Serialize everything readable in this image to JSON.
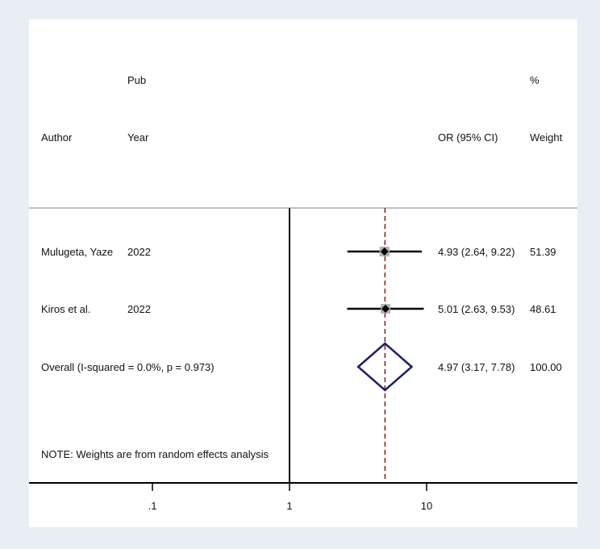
{
  "chart_data": {
    "type": "forest",
    "header": {
      "author": "Author",
      "pub": "Pub",
      "year": "Year",
      "effect": "OR (95% CI)",
      "pct": "%",
      "weight": "Weight"
    },
    "studies": [
      {
        "author": "Mulugeta, Yaze",
        "year": "2022",
        "or": 4.93,
        "lo": 2.64,
        "hi": 9.22,
        "or_text": "4.93 (2.64, 9.22)",
        "weight": "51.39",
        "weight_value": 51.39
      },
      {
        "author": "Kiros et al.",
        "year": "2022",
        "or": 5.01,
        "lo": 2.63,
        "hi": 9.53,
        "or_text": "5.01 (2.63, 9.53)",
        "weight": "48.61",
        "weight_value": 48.61
      }
    ],
    "overall": {
      "label": "Overall  (I-squared = 0.0%, p = 0.973)",
      "or": 4.97,
      "lo": 3.17,
      "hi": 7.78,
      "or_text": "4.97 (3.17, 7.78)",
      "weight": "100.00"
    },
    "note": "NOTE: Weights are from random effects analysis",
    "x_scale": "log",
    "x_ticks": [
      {
        "value": 0.1,
        "label": ".1"
      },
      {
        "value": 1,
        "label": "1"
      },
      {
        "value": 10,
        "label": "10"
      }
    ],
    "xlim": [
      0.01,
      100
    ],
    "null_line": 1,
    "colors": {
      "background": "#e8eef2",
      "plot": "#ffffff",
      "ci_line": "#000000",
      "marker": "#000000",
      "weight_box": "#b0b0b0",
      "diamond": "#1a1f6e",
      "dashed_ref": "#8b1a1a",
      "separator": "#c0c0c0"
    }
  }
}
